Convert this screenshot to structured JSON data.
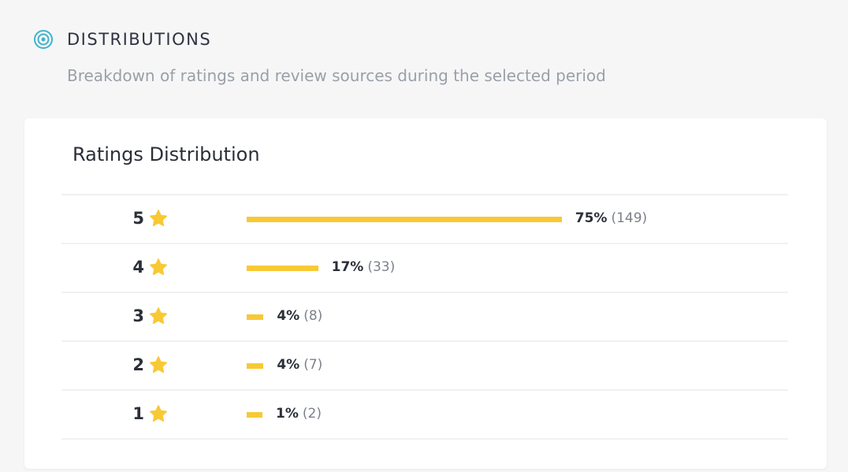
{
  "header": {
    "title": "DISTRIBUTIONS",
    "subtitle": "Breakdown of ratings and review sources during the selected period"
  },
  "card": {
    "title": "Ratings Distribution",
    "rows": [
      {
        "rating": "5",
        "percent": 75,
        "percent_label": "75%",
        "count_label": "(149)"
      },
      {
        "rating": "4",
        "percent": 17,
        "percent_label": "17%",
        "count_label": "(33)"
      },
      {
        "rating": "3",
        "percent": 4,
        "percent_label": "4%",
        "count_label": "(8)"
      },
      {
        "rating": "2",
        "percent": 4,
        "percent_label": "4%",
        "count_label": "(7)"
      },
      {
        "rating": "1",
        "percent": 1,
        "percent_label": "1%",
        "count_label": "(2)"
      }
    ]
  }
}
